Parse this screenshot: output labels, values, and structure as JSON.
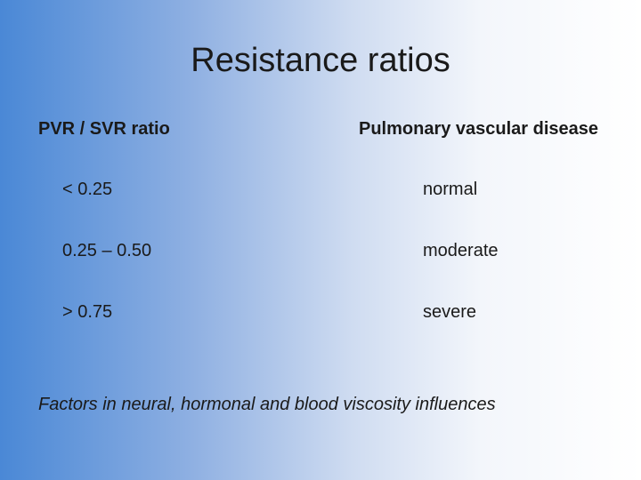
{
  "slide": {
    "title": "Resistance ratios",
    "headers": {
      "left": "PVR / SVR ratio",
      "right": "Pulmonary vascular disease"
    },
    "rows": [
      {
        "ratio": "< 0.25",
        "disease": "normal"
      },
      {
        "ratio": "0.25 – 0.50",
        "disease": "moderate"
      },
      {
        "ratio": "> 0.75",
        "disease": "severe"
      }
    ],
    "footer": "Factors in neural, hormonal and blood viscosity influences"
  }
}
